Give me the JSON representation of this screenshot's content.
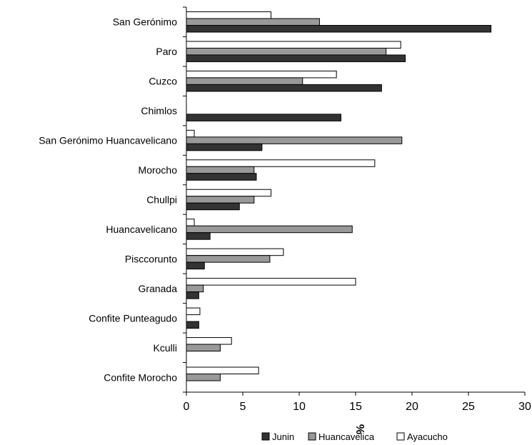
{
  "chart_data": {
    "type": "bar",
    "orientation": "horizontal",
    "categories": [
      "San Gerónimo",
      "Paro",
      "Cuzco",
      "Chimlos",
      "San Gerónimo Huancavelicano",
      "Morocho",
      "Chullpi",
      "Huancavelicano",
      "Pisccorunto",
      "Granada",
      "Confite Punteagudo",
      "Kculli",
      "Confite Morocho"
    ],
    "series": [
      {
        "name": "Junin",
        "color": "#333333",
        "values": [
          27.0,
          19.4,
          17.3,
          13.7,
          6.7,
          6.2,
          4.7,
          2.1,
          1.6,
          1.1,
          1.1,
          0,
          0
        ]
      },
      {
        "name": "Huancavelica",
        "color": "#999999",
        "values": [
          11.8,
          17.7,
          10.3,
          0,
          19.1,
          6.0,
          6.0,
          14.7,
          7.4,
          1.5,
          0,
          3.0,
          3.0
        ]
      },
      {
        "name": "Ayacucho",
        "color": "#ffffff",
        "values": [
          7.5,
          19.0,
          13.3,
          0,
          0.7,
          16.7,
          7.5,
          0.7,
          8.6,
          15.0,
          1.2,
          4.0,
          6.4
        ]
      }
    ],
    "xlabel": "%",
    "xlim": [
      0,
      30
    ],
    "xticks": [
      "0",
      "5",
      "10",
      "15",
      "20",
      "25",
      "30"
    ],
    "legend_position": "bottom",
    "grid": false
  }
}
